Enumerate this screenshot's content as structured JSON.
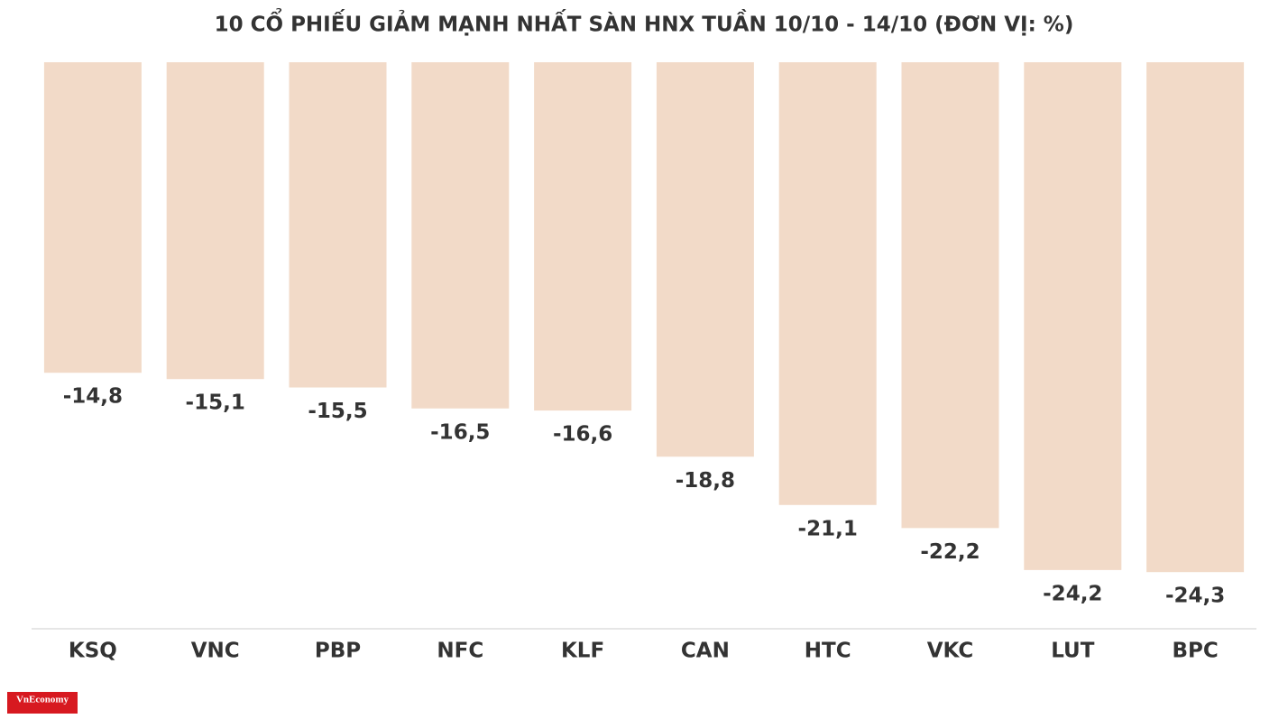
{
  "chart_data": {
    "type": "bar",
    "title": "10 CỔ PHIẾU GIẢM MẠNH NHẤT SÀN HNX TUẦN 10/10 - 14/10 (ĐƠN VỊ: %)",
    "categories": [
      "KSQ",
      "VNC",
      "PBP",
      "NFC",
      "KLF",
      "CAN",
      "HTC",
      "VKC",
      "LUT",
      "BPC"
    ],
    "values": [
      -14.8,
      -15.1,
      -15.5,
      -16.5,
      -16.6,
      -18.8,
      -21.1,
      -22.2,
      -24.2,
      -24.3
    ],
    "value_labels": [
      "-14,8",
      "-15,1",
      "-15,5",
      "-16,5",
      "-16,6",
      "-18,8",
      "-21,1",
      "-22,2",
      "-24,2",
      "-24,3"
    ],
    "color": "#f2dac8",
    "ylim": [
      -27,
      0
    ]
  },
  "logo": "VnEconomy"
}
